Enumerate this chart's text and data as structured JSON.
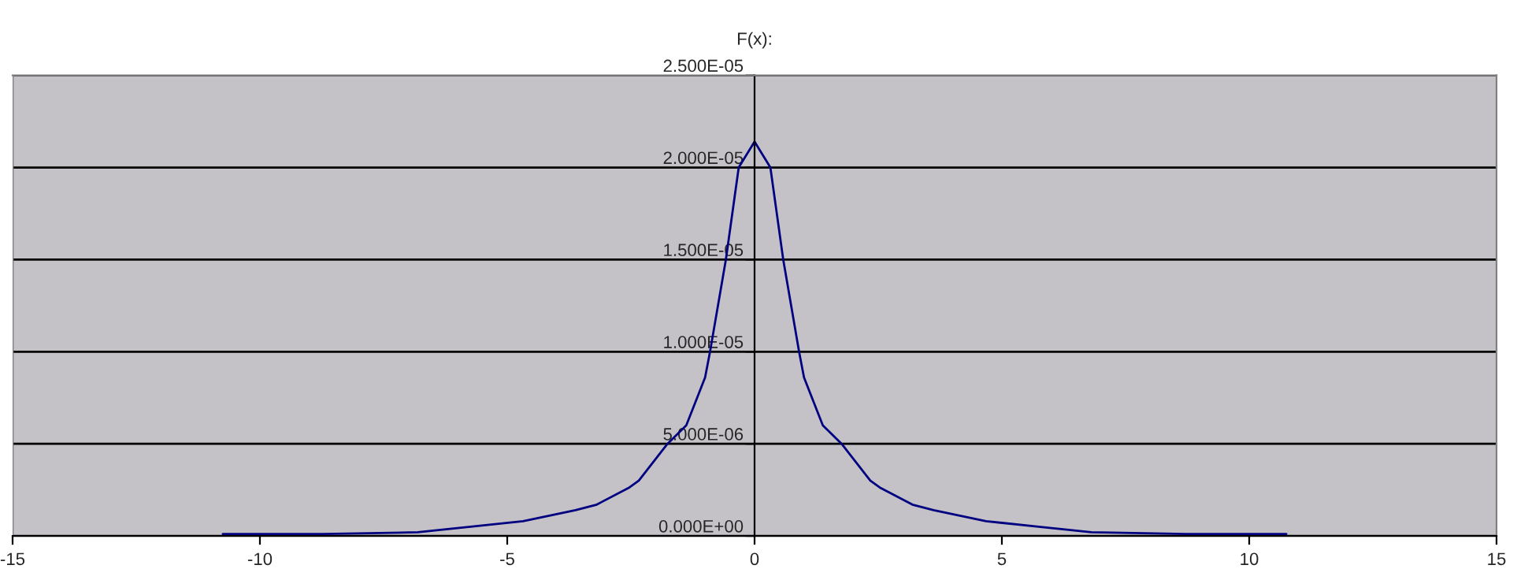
{
  "chart_data": {
    "type": "line",
    "title": "F(x):",
    "x": [
      -10.75,
      -8.72,
      -6.81,
      -5.74,
      -4.68,
      -3.62,
      -3.19,
      -2.55,
      -2.34,
      -1.76,
      -1.38,
      -1.0,
      -0.9,
      -0.58,
      -0.32,
      0,
      0.32,
      0.58,
      0.9,
      1.0,
      1.38,
      1.76,
      2.34,
      2.55,
      3.19,
      3.62,
      4.68,
      5.74,
      6.81,
      8.72,
      10.75
    ],
    "series": [
      {
        "color": "#000080",
        "values": [
          1e-07,
          1e-07,
          2e-07,
          5e-07,
          8e-07,
          1.4e-06,
          1.7e-06,
          2.6e-06,
          3e-06,
          5e-06,
          6e-06,
          8.6e-06,
          1e-05,
          1.5e-05,
          2e-05,
          2.14e-05,
          2e-05,
          1.5e-05,
          1e-05,
          8.6e-06,
          6e-06,
          5e-06,
          3e-06,
          2.6e-06,
          1.7e-06,
          1.4e-06,
          8e-07,
          5e-07,
          2e-07,
          1e-07,
          1e-07
        ]
      }
    ],
    "xlim": [
      -15,
      15
    ],
    "xticks": [
      -15,
      -10,
      -5,
      0,
      5,
      10,
      15
    ],
    "ylim": [
      0,
      2.5e-05
    ],
    "yticks": [
      {
        "value": 0,
        "label": "0.000E+00"
      },
      {
        "value": 5e-06,
        "label": "5.000E-06"
      },
      {
        "value": 1e-05,
        "label": "1.000E-05"
      },
      {
        "value": 1.5e-05,
        "label": "1.500E-05"
      },
      {
        "value": 2e-05,
        "label": "2.000E-05"
      },
      {
        "value": 2.5e-05,
        "label": "2.500E-05"
      }
    ],
    "grid": "y",
    "legend": false,
    "marker": "none",
    "line_style": "solid"
  }
}
